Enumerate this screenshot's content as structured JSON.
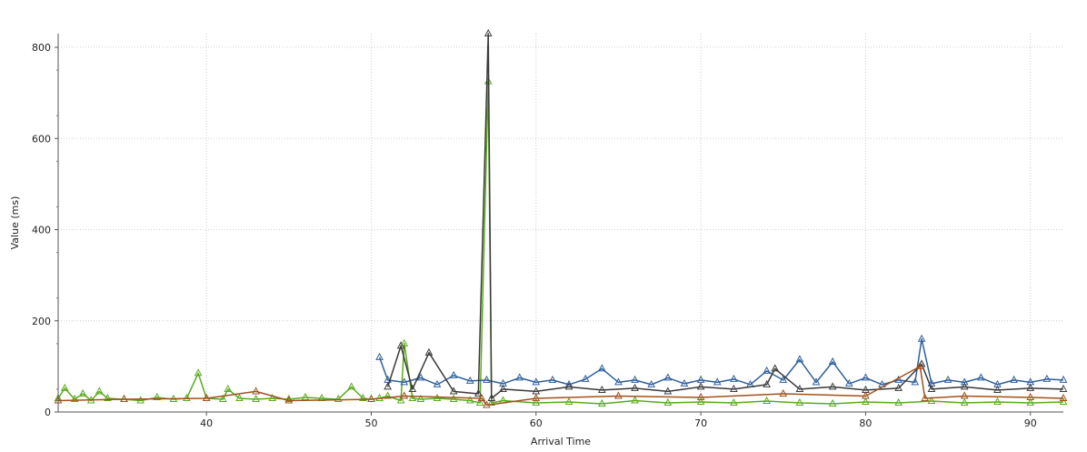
{
  "chart_data": {
    "type": "line",
    "xlabel": "Arrival Time",
    "ylabel": "Value (ms)",
    "xlim": [
      31,
      92
    ],
    "ylim": [
      0,
      830
    ],
    "x_ticks": [
      40,
      50,
      60,
      70,
      80,
      90
    ],
    "y_ticks": [
      0,
      200,
      400,
      600,
      800
    ],
    "grid": true,
    "legend": "none",
    "colors": {
      "blue": "#2f5f9e",
      "black": "#3a3a3a",
      "brown": "#a0521d",
      "green": "#5aaa1e",
      "grid": "#cfcfcf"
    },
    "series": [
      {
        "color": "green",
        "x": [
          31.0,
          31.4,
          32.0,
          32.5,
          33.0,
          33.5,
          34.0,
          35.0,
          36.0,
          37.0,
          38.0,
          38.8,
          39.5,
          40.0,
          41.0,
          41.3,
          42.0,
          43.0,
          44.0,
          45.0,
          46.0,
          47.0,
          48.0,
          48.8,
          49.5,
          50.0,
          50.5,
          51.0,
          51.8,
          52.0,
          52.5,
          53.0,
          54.0,
          55.0,
          56.0,
          56.6,
          57.1,
          57.3,
          58.0,
          60.0,
          62.0,
          64.0,
          66.0,
          68.0,
          70.0,
          72.0,
          74.0,
          76.0,
          78.0,
          80.0,
          82.0,
          84.0,
          86.0,
          88.0,
          90.0,
          92.0
        ],
        "y": [
          30,
          52,
          28,
          40,
          25,
          45,
          30,
          28,
          25,
          32,
          28,
          30,
          85,
          30,
          28,
          50,
          30,
          28,
          30,
          28,
          32,
          30,
          28,
          55,
          30,
          28,
          30,
          35,
          25,
          150,
          30,
          28,
          30,
          28,
          25,
          20,
          725,
          20,
          25,
          20,
          22,
          18,
          25,
          20,
          22,
          20,
          24,
          20,
          18,
          22,
          20,
          24,
          20,
          22,
          20,
          22
        ]
      },
      {
        "color": "blue",
        "x": [
          50.5,
          51.0,
          52.0,
          53.0,
          54.0,
          55.0,
          56.0,
          57.0,
          58.0,
          59.0,
          60.0,
          61.0,
          62.0,
          63.0,
          64.0,
          65.0,
          66.0,
          67.0,
          68.0,
          69.0,
          70.0,
          71.0,
          72.0,
          73.0,
          74.0,
          75.0,
          76.0,
          77.0,
          78.0,
          79.0,
          80.0,
          81.0,
          82.0,
          83.0,
          83.4,
          84.0,
          85.0,
          86.0,
          87.0,
          88.0,
          89.0,
          90.0,
          91.0,
          92.0
        ],
        "y": [
          120,
          70,
          65,
          75,
          60,
          80,
          68,
          70,
          62,
          75,
          65,
          70,
          60,
          72,
          95,
          65,
          70,
          60,
          75,
          62,
          70,
          65,
          72,
          60,
          90,
          70,
          115,
          65,
          110,
          62,
          75,
          60,
          70,
          65,
          160,
          62,
          70,
          65,
          75,
          60,
          70,
          65,
          72,
          70
        ]
      },
      {
        "color": "black",
        "x": [
          51.0,
          51.8,
          52.5,
          53.5,
          55.0,
          56.5,
          57.1,
          57.3,
          58.0,
          60.0,
          62.0,
          64.0,
          66.0,
          68.0,
          70.0,
          72.0,
          74.0,
          74.5,
          76.0,
          78.0,
          80.0,
          82.0,
          83.4,
          84.0,
          86.0,
          88.0,
          90.0,
          92.0
        ],
        "y": [
          55,
          145,
          50,
          130,
          45,
          40,
          830,
          30,
          50,
          45,
          55,
          48,
          52,
          45,
          55,
          50,
          60,
          95,
          50,
          55,
          48,
          52,
          105,
          50,
          55,
          48,
          52,
          50
        ]
      },
      {
        "color": "brown",
        "x": [
          31.0,
          35.0,
          40.0,
          43.0,
          45.0,
          50.0,
          52.0,
          56.7,
          57.0,
          60.0,
          65.0,
          70.0,
          75.0,
          80.0,
          83.3,
          83.6,
          86.0,
          90.0,
          92.0
        ],
        "y": [
          25,
          28,
          30,
          45,
          25,
          28,
          35,
          30,
          15,
          30,
          35,
          32,
          40,
          35,
          100,
          30,
          35,
          32,
          30
        ]
      }
    ]
  }
}
